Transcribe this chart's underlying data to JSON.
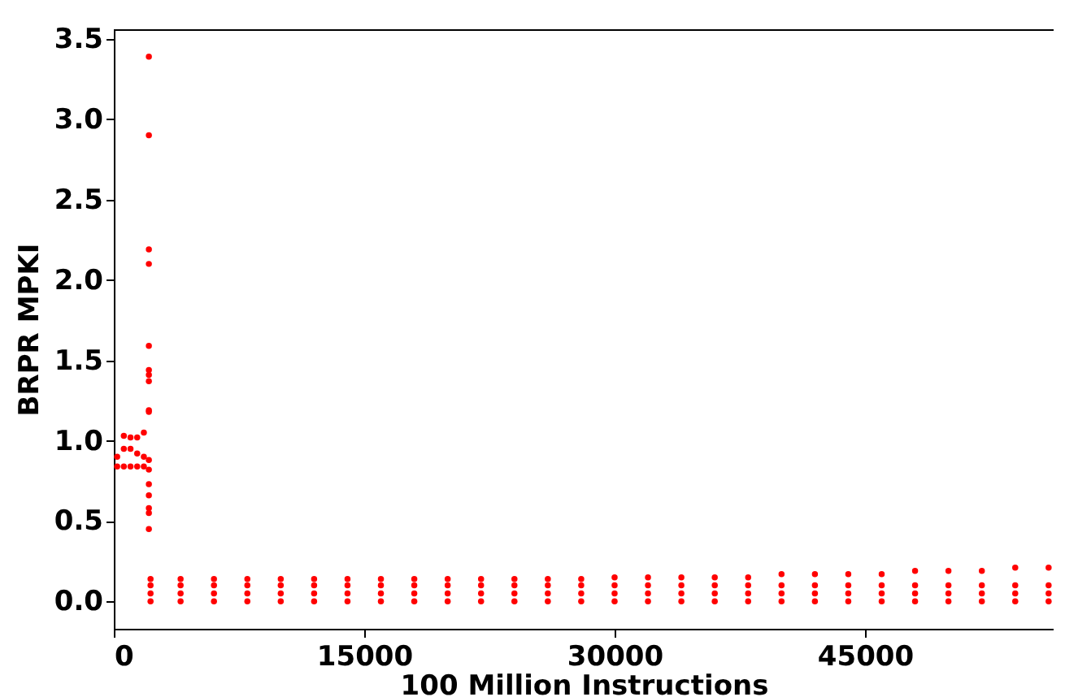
{
  "chart_data": {
    "type": "scatter",
    "xlabel": "100 Million Instructions",
    "ylabel": "BRPR MPKI",
    "xlim": [
      0,
      56300
    ],
    "ylim": [
      -0.17,
      3.56
    ],
    "xticks": [
      0,
      15000,
      30000,
      45000
    ],
    "yticks": [
      {
        "value": 0,
        "label": "0.0"
      },
      {
        "value": 0.5,
        "label": "0.5"
      },
      {
        "value": 1,
        "label": "1.0"
      },
      {
        "value": 1.5,
        "label": "1.5"
      },
      {
        "value": 2,
        "label": "2.0"
      },
      {
        "value": 2.5,
        "label": "2.5"
      },
      {
        "value": 3,
        "label": "3.0"
      },
      {
        "value": 3.5,
        "label": "3.5"
      }
    ],
    "grid": false,
    "legend": false,
    "marker": "circle",
    "series": [
      {
        "color": "#ff0000",
        "x": [
          200,
          200,
          600,
          600,
          600,
          1000,
          1000,
          1000,
          1400,
          1400,
          1400,
          1800,
          1800,
          1800,
          2100,
          2100,
          2100,
          2100,
          2100,
          2100,
          2100,
          2100,
          2100,
          2100,
          2100,
          2100,
          2100,
          2100,
          2100,
          2100,
          2100,
          2200,
          2200,
          2200,
          2200,
          4000,
          4000,
          4000,
          4000,
          6000,
          6000,
          6000,
          6000,
          8000,
          8000,
          8000,
          8000,
          10000,
          10000,
          10000,
          10000,
          12000,
          12000,
          12000,
          12000,
          14000,
          14000,
          14000,
          14000,
          16000,
          16000,
          16000,
          16000,
          18000,
          18000,
          18000,
          18000,
          20000,
          20000,
          20000,
          20000,
          22000,
          22000,
          22000,
          22000,
          24000,
          24000,
          24000,
          24000,
          26000,
          26000,
          26000,
          26000,
          28000,
          28000,
          28000,
          28000,
          30000,
          30000,
          30000,
          30000,
          32000,
          32000,
          32000,
          32000,
          34000,
          34000,
          34000,
          34000,
          36000,
          36000,
          36000,
          36000,
          38000,
          38000,
          38000,
          38000,
          40000,
          40000,
          40000,
          40000,
          42000,
          42000,
          42000,
          42000,
          44000,
          44000,
          44000,
          44000,
          46000,
          46000,
          46000,
          46000,
          48000,
          48000,
          48000,
          48000,
          50000,
          50000,
          50000,
          50000,
          52000,
          52000,
          52000,
          52000,
          54000,
          54000,
          54000,
          54000,
          56000,
          56000,
          56000,
          56000
        ],
        "values": [
          0.84,
          0.9,
          0.84,
          0.95,
          1.03,
          0.84,
          0.95,
          1.02,
          0.84,
          0.92,
          1.02,
          0.84,
          0.9,
          1.05,
          0.82,
          0.88,
          3.39,
          2.9,
          2.19,
          2.1,
          1.59,
          1.44,
          1.41,
          1.37,
          1.19,
          1.18,
          0.73,
          0.66,
          0.58,
          0.55,
          0.45,
          0,
          0.05,
          0.1,
          0.14,
          0,
          0.05,
          0.1,
          0.14,
          0,
          0.05,
          0.1,
          0.14,
          0,
          0.05,
          0.1,
          0.14,
          0,
          0.05,
          0.1,
          0.14,
          0,
          0.05,
          0.1,
          0.14,
          0,
          0.05,
          0.1,
          0.14,
          0,
          0.05,
          0.1,
          0.14,
          0,
          0.05,
          0.1,
          0.14,
          0,
          0.05,
          0.1,
          0.14,
          0,
          0.05,
          0.1,
          0.14,
          0,
          0.05,
          0.1,
          0.14,
          0,
          0.05,
          0.1,
          0.14,
          0,
          0.05,
          0.1,
          0.14,
          0,
          0.05,
          0.1,
          0.15,
          0,
          0.05,
          0.1,
          0.15,
          0,
          0.05,
          0.1,
          0.15,
          0,
          0.05,
          0.1,
          0.15,
          0,
          0.05,
          0.1,
          0.15,
          0,
          0.05,
          0.1,
          0.17,
          0,
          0.05,
          0.1,
          0.17,
          0,
          0.05,
          0.1,
          0.17,
          0,
          0.05,
          0.1,
          0.17,
          0,
          0.05,
          0.1,
          0.19,
          0,
          0.05,
          0.1,
          0.19,
          0,
          0.05,
          0.1,
          0.19,
          0,
          0.05,
          0.1,
          0.21,
          0,
          0.05,
          0.1,
          0.21
        ]
      }
    ]
  }
}
